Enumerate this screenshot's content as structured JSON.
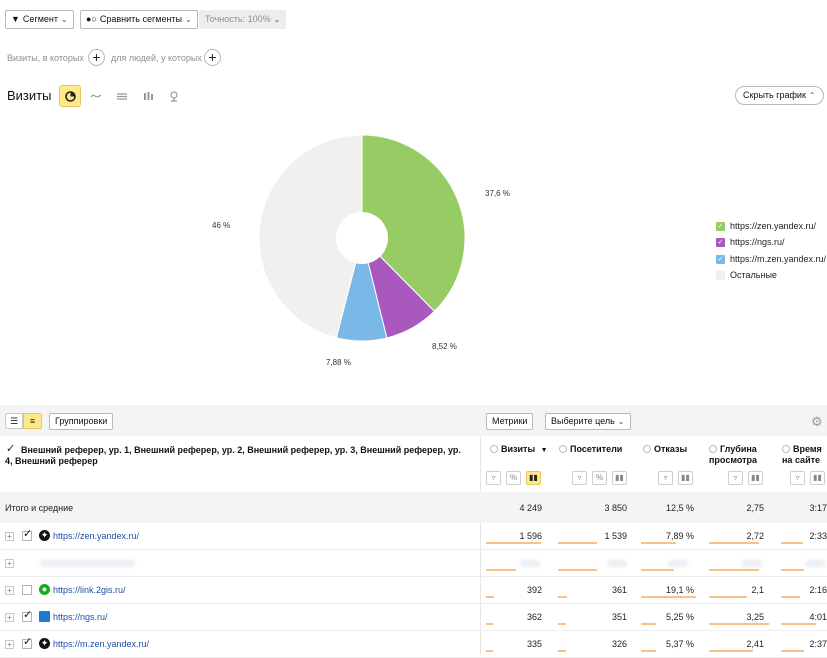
{
  "toolbar": {
    "segment_label": "Сегмент",
    "compare_label": "Сравнить сегменты",
    "accuracy_label": "Точность: 100%"
  },
  "filter_line": {
    "visits_text": "Визиты, в которых",
    "people_text": "для людей, у которых"
  },
  "chart_header": {
    "title": "Визиты",
    "hide_chart_label": "Скрыть график",
    "view_icons": [
      "pie-chart-icon",
      "line-chart-icon",
      "area-chart-icon",
      "bar-chart-icon",
      "map-pin-icon"
    ]
  },
  "chart_data": {
    "type": "pie",
    "title": "",
    "slices": [
      {
        "label": "https://zen.yandex.ru/",
        "value": 37.6,
        "value_label": "37,6 %",
        "color": "#97cc64"
      },
      {
        "label": "https://ngs.ru/",
        "value": 8.52,
        "value_label": "8,52 %",
        "color": "#a958be"
      },
      {
        "label": "https://m.zen.yandex.ru/",
        "value": 7.88,
        "value_label": "7,88 %",
        "color": "#7ab8e8"
      },
      {
        "label": "Остальные",
        "value": 46,
        "value_label": "46 %",
        "color": "#f1f0ee"
      }
    ],
    "legend_position": "right",
    "donut": true
  },
  "table_toolbar": {
    "groupings_label": "Группировки",
    "metrics_label": "Метрики",
    "goal_label": "Выберите цель"
  },
  "table": {
    "dimension_header": "Внешний реферер, ур. 1, Внешний реферер, ур. 2, Внешний реферер, ур. 3, Внешний реферер, ур. 4, Внешний реферер",
    "columns": [
      {
        "label": "Визиты",
        "sort_mark": "▼"
      },
      {
        "label": "Посетители"
      },
      {
        "label": "Отказы"
      },
      {
        "label": "Глубина просмотра"
      },
      {
        "label": "Время на сайте"
      }
    ],
    "totals": {
      "label": "Итого и средние",
      "values": [
        "4 249",
        "3 850",
        "12,5 %",
        "2,75",
        "3:17"
      ]
    },
    "rows": [
      {
        "site": "https://zen.yandex.ru/",
        "checked": true,
        "icon": "zen-icon",
        "values": [
          "1 596",
          "1 539",
          "7,89 %",
          "2,72",
          "2:33"
        ],
        "bars": [
          1,
          0.55,
          0.63,
          0.83,
          0.48
        ],
        "blurred": false
      },
      {
        "site": "",
        "checked": false,
        "icon": "",
        "values": [],
        "bars": [
          0.55,
          0.55,
          0.6,
          0.83,
          0.5
        ],
        "blurred": true
      },
      {
        "site": "https://link.2gis.ru/",
        "checked": false,
        "icon": "2gis-icon",
        "values": [
          "392",
          "361",
          "19,1 %",
          "2,1",
          "2:16"
        ],
        "bars": [
          0.14,
          0.13,
          1,
          0.64,
          0.42
        ],
        "blurred": false
      },
      {
        "site": "https://ngs.ru/",
        "checked": true,
        "icon": "ngs-icon",
        "values": [
          "362",
          "351",
          "5,25 %",
          "3,25",
          "4:01"
        ],
        "bars": [
          0.13,
          0.12,
          0.27,
          1,
          0.76
        ],
        "blurred": false
      },
      {
        "site": "https://m.zen.yandex.ru/",
        "checked": true,
        "icon": "zen-icon",
        "values": [
          "335",
          "326",
          "5,37 %",
          "2,41",
          "2:37"
        ],
        "bars": [
          0.12,
          0.11,
          0.28,
          0.74,
          0.5
        ],
        "blurred": false
      }
    ]
  }
}
